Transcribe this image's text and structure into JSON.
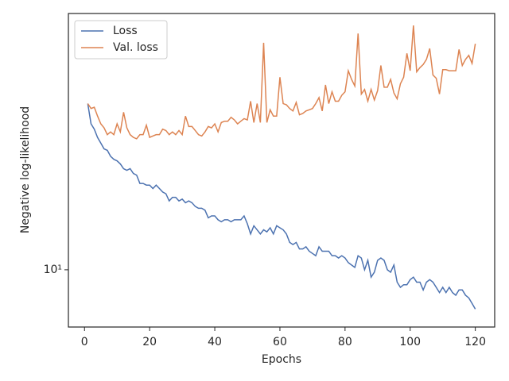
{
  "chart_data": {
    "type": "line",
    "xlabel": "Epochs",
    "ylabel": "Negative log-likelihood",
    "x": [
      1,
      2,
      3,
      4,
      5,
      6,
      7,
      8,
      9,
      10,
      11,
      12,
      13,
      14,
      15,
      16,
      17,
      18,
      19,
      20,
      21,
      22,
      23,
      24,
      25,
      26,
      27,
      28,
      29,
      30,
      31,
      32,
      33,
      34,
      35,
      36,
      37,
      38,
      39,
      40,
      41,
      42,
      43,
      44,
      45,
      46,
      47,
      48,
      49,
      50,
      51,
      52,
      53,
      54,
      55,
      56,
      57,
      58,
      59,
      60,
      61,
      62,
      63,
      64,
      65,
      66,
      67,
      68,
      69,
      70,
      71,
      72,
      73,
      74,
      75,
      76,
      77,
      78,
      79,
      80,
      81,
      82,
      83,
      84,
      85,
      86,
      87,
      88,
      89,
      90,
      91,
      92,
      93,
      94,
      95,
      96,
      97,
      98,
      99,
      100,
      101,
      102,
      103,
      104,
      105,
      106,
      107,
      108,
      109,
      110,
      111,
      112,
      113,
      114,
      115,
      116,
      117,
      118,
      119,
      120
    ],
    "series": [
      {
        "name": "Loss",
        "color": "#4c72b0",
        "values": [
          19.9,
          18.3,
          17.9,
          17.3,
          16.9,
          16.5,
          16.4,
          16.0,
          15.8,
          15.7,
          15.5,
          15.2,
          15.1,
          15.2,
          14.9,
          14.8,
          14.3,
          14.3,
          14.2,
          14.2,
          14.0,
          14.2,
          14.0,
          13.8,
          13.7,
          13.3,
          13.5,
          13.5,
          13.3,
          13.4,
          13.2,
          13.3,
          13.2,
          13.0,
          12.9,
          12.9,
          12.8,
          12.4,
          12.5,
          12.5,
          12.3,
          12.2,
          12.3,
          12.3,
          12.2,
          12.3,
          12.3,
          12.3,
          12.5,
          12.1,
          11.6,
          12.0,
          11.8,
          11.6,
          11.8,
          11.7,
          11.9,
          11.6,
          12.0,
          11.9,
          11.8,
          11.6,
          11.2,
          11.1,
          11.2,
          10.9,
          10.9,
          11.0,
          10.8,
          10.7,
          10.6,
          11.0,
          10.8,
          10.8,
          10.8,
          10.6,
          10.6,
          10.5,
          10.6,
          10.5,
          10.3,
          10.2,
          10.1,
          10.6,
          10.5,
          10.0,
          10.4,
          9.7,
          9.9,
          10.4,
          10.5,
          10.4,
          10.0,
          9.9,
          10.2,
          9.5,
          9.3,
          9.4,
          9.4,
          9.6,
          9.7,
          9.5,
          9.5,
          9.2,
          9.5,
          9.6,
          9.5,
          9.3,
          9.1,
          9.3,
          9.1,
          9.3,
          9.1,
          9.0,
          9.2,
          9.2,
          9.0,
          8.9,
          8.7,
          8.5
        ]
      },
      {
        "name": "Val. loss",
        "color": "#dd8452",
        "values": [
          19.9,
          19.5,
          19.6,
          18.9,
          18.3,
          18.0,
          17.5,
          17.7,
          17.5,
          18.3,
          17.7,
          19.2,
          18.0,
          17.5,
          17.3,
          17.2,
          17.5,
          17.5,
          18.2,
          17.3,
          17.4,
          17.5,
          17.5,
          17.9,
          17.8,
          17.5,
          17.7,
          17.5,
          17.8,
          17.5,
          18.9,
          18.1,
          18.1,
          17.8,
          17.5,
          17.4,
          17.7,
          18.1,
          18.0,
          18.3,
          17.7,
          18.4,
          18.5,
          18.5,
          18.8,
          18.6,
          18.3,
          18.5,
          18.7,
          18.6,
          20.1,
          18.4,
          19.9,
          18.4,
          25.6,
          18.4,
          19.4,
          18.9,
          18.9,
          22.2,
          19.9,
          19.8,
          19.5,
          19.3,
          20.0,
          19.0,
          19.1,
          19.3,
          19.4,
          19.5,
          19.9,
          20.4,
          19.3,
          21.5,
          19.9,
          20.9,
          20.1,
          20.1,
          20.6,
          20.9,
          22.8,
          22.0,
          21.4,
          26.6,
          20.7,
          21.1,
          20.1,
          21.1,
          20.2,
          21.0,
          23.3,
          21.3,
          21.3,
          22.0,
          20.8,
          20.3,
          21.6,
          22.2,
          24.5,
          22.8,
          27.5,
          22.7,
          23.1,
          23.4,
          23.9,
          25.0,
          22.4,
          22.1,
          20.7,
          22.9,
          22.9,
          22.8,
          22.8,
          22.8,
          24.9,
          23.3,
          23.9,
          24.3,
          23.5,
          25.5
        ]
      }
    ],
    "xlim": [
      -4.95,
      125.95
    ],
    "xticks": [
      0,
      20,
      40,
      60,
      80,
      100,
      120
    ],
    "ylim": [
      7.89,
      28.9
    ],
    "yticks": [
      {
        "value": 10,
        "label": "10¹"
      }
    ],
    "ylog": true,
    "legend": "upper left"
  }
}
